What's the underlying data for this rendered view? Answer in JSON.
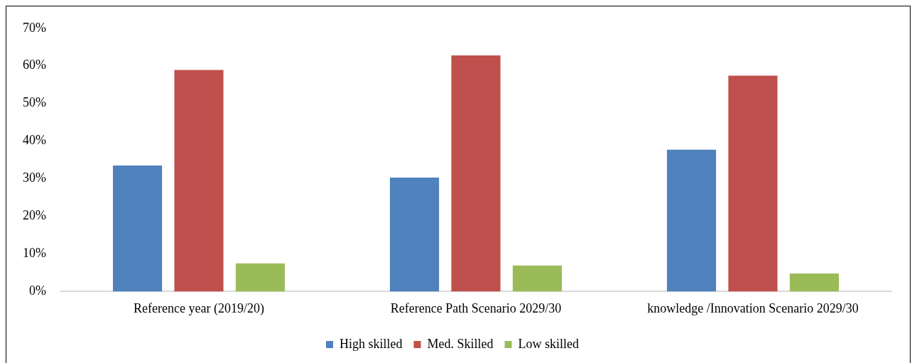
{
  "chart_data": {
    "type": "bar",
    "categories": [
      "Reference year (2019/20)",
      "Reference Path Scenario 2029/30",
      "knowledge /Innovation Scenario 2029/30"
    ],
    "series": [
      {
        "name": "High skilled",
        "color": "#4f81bd",
        "values": [
          33.5,
          30.3,
          37.7
        ]
      },
      {
        "name": "Med. Skilled",
        "color": "#c0504d",
        "values": [
          58.9,
          62.8,
          57.4
        ]
      },
      {
        "name": "Low skilled",
        "color": "#9bbb59",
        "values": [
          7.5,
          6.9,
          4.8
        ]
      }
    ],
    "ylim": [
      0,
      70
    ],
    "yticks": [
      {
        "value": 0,
        "label": "0%"
      },
      {
        "value": 10,
        "label": "10%"
      },
      {
        "value": 20,
        "label": "20%"
      },
      {
        "value": 30,
        "label": "30%"
      },
      {
        "value": 40,
        "label": "40%"
      },
      {
        "value": 50,
        "label": "50%"
      },
      {
        "value": 60,
        "label": "60%"
      },
      {
        "value": 70,
        "label": "70%"
      }
    ],
    "legend": "bottom"
  }
}
